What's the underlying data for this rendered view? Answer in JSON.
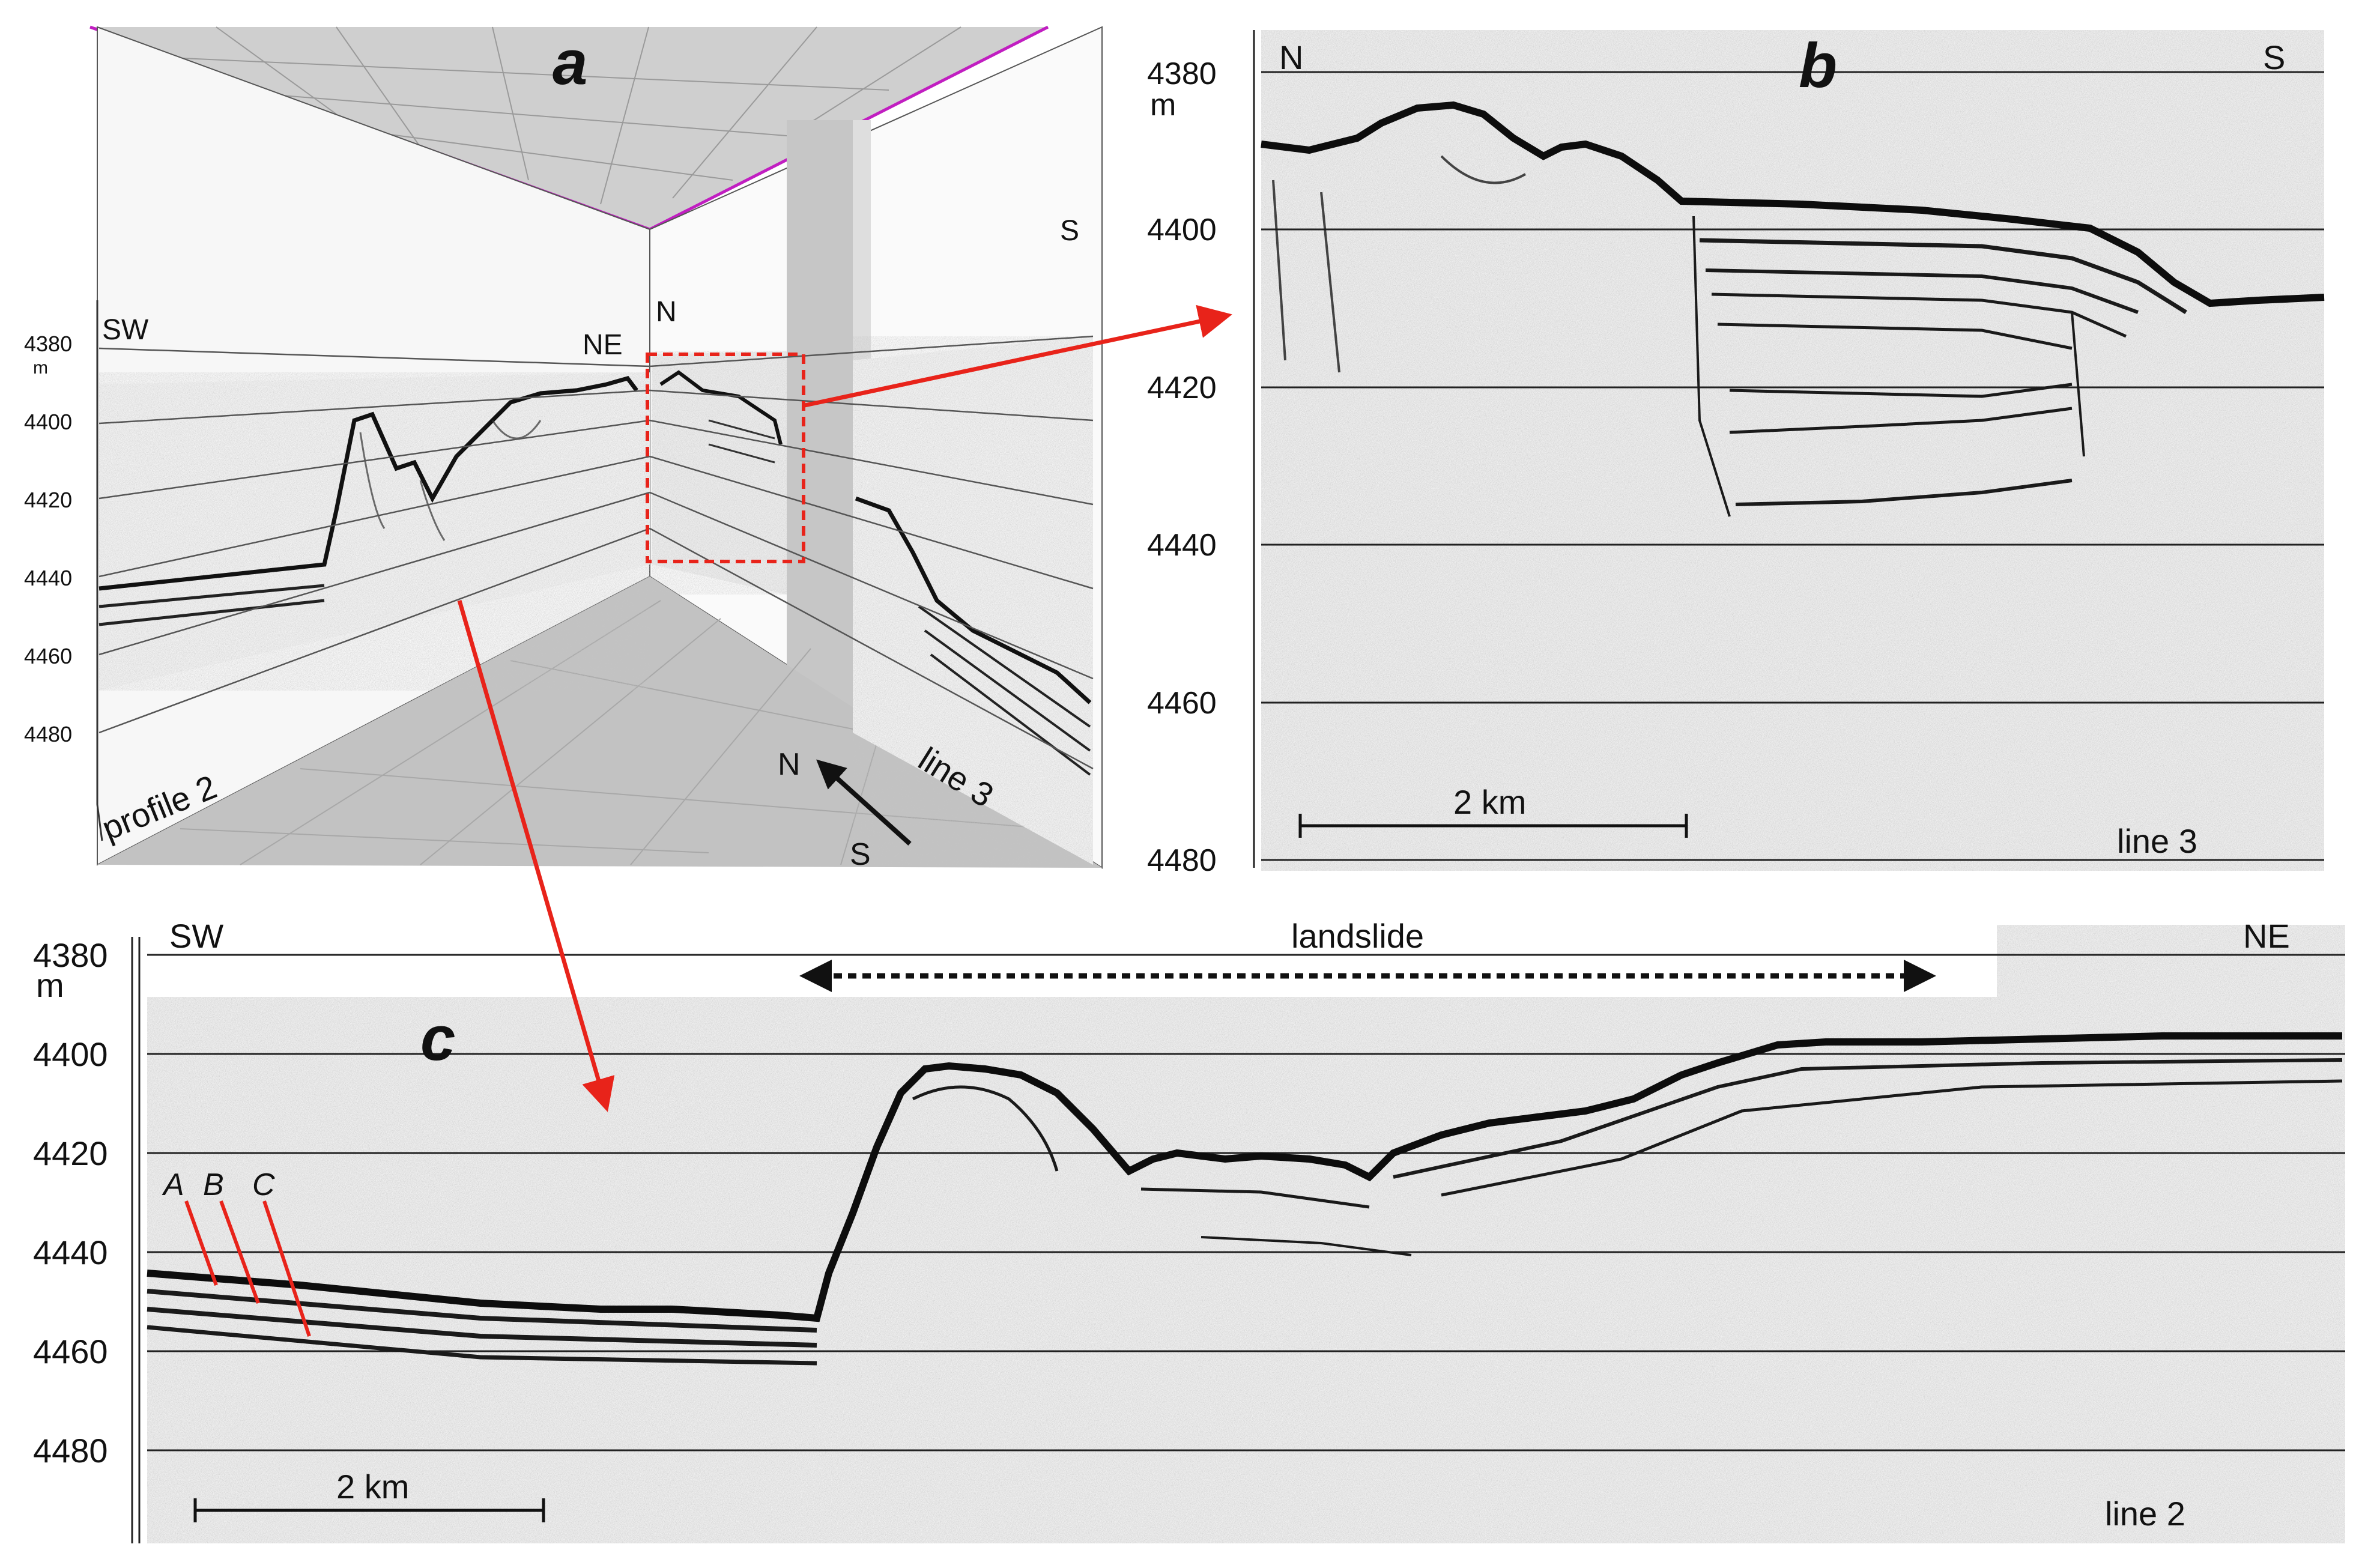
{
  "panel_a": {
    "letter": "a",
    "left_wall": {
      "direction": "SW",
      "name": "profile 2"
    },
    "corner_labels": {
      "ne": "NE",
      "n": "N"
    },
    "right_wall": {
      "far_direction": "S",
      "name": "line 3"
    },
    "depth_ticks": [
      "4380",
      "4400",
      "4420",
      "4440",
      "4460",
      "4480"
    ],
    "depth_unit": "m",
    "compass": {
      "n": "N",
      "s": "S"
    }
  },
  "panel_b": {
    "letter": "b",
    "left_direction": "N",
    "right_direction": "S",
    "depth_ticks": [
      "4380",
      "4400",
      "4420",
      "4440",
      "4460",
      "4480"
    ],
    "depth_unit": "m",
    "scale_bar": "2 km",
    "line_name": "line 3"
  },
  "panel_c": {
    "letter": "c",
    "left_direction": "SW",
    "right_direction": "NE",
    "depth_ticks": [
      "4380",
      "4400",
      "4420",
      "4440",
      "4460",
      "4480"
    ],
    "depth_unit": "m",
    "feature": "landslide",
    "markers": [
      "A",
      "B",
      "C"
    ],
    "scale_bar": "2 km",
    "line_name": "line 2"
  },
  "colors": {
    "arrow": "#e8231a",
    "frame": "#c11ec1",
    "floor": "#bfbfbf",
    "grid": "#666666"
  }
}
